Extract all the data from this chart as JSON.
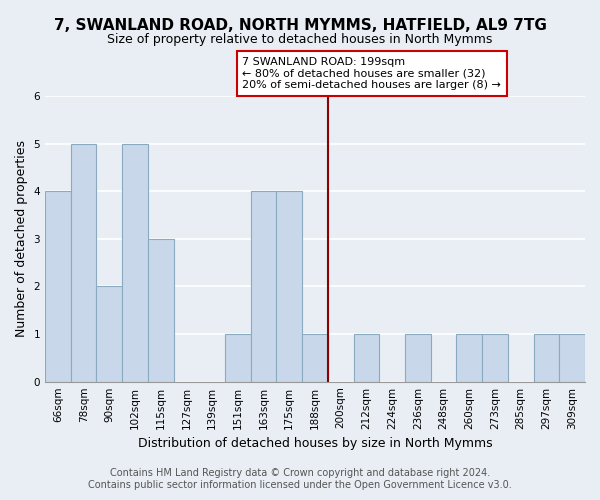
{
  "title": "7, SWANLAND ROAD, NORTH MYMMS, HATFIELD, AL9 7TG",
  "subtitle": "Size of property relative to detached houses in North Mymms",
  "xlabel": "Distribution of detached houses by size in North Mymms",
  "ylabel": "Number of detached properties",
  "bar_labels": [
    "66sqm",
    "78sqm",
    "90sqm",
    "102sqm",
    "115sqm",
    "127sqm",
    "139sqm",
    "151sqm",
    "163sqm",
    "175sqm",
    "188sqm",
    "200sqm",
    "212sqm",
    "224sqm",
    "236sqm",
    "248sqm",
    "260sqm",
    "273sqm",
    "285sqm",
    "297sqm",
    "309sqm"
  ],
  "bar_values": [
    4,
    5,
    2,
    5,
    3,
    0,
    0,
    1,
    4,
    4,
    1,
    0,
    1,
    0,
    1,
    0,
    1,
    1,
    0,
    1,
    1
  ],
  "bar_color": "#c8d8ea",
  "bar_edge_color": "#8aaabf",
  "property_line_x": 10.5,
  "property_line_color": "#8b0000",
  "annotation_title": "7 SWANLAND ROAD: 199sqm",
  "annotation_line1": "← 80% of detached houses are smaller (32)",
  "annotation_line2": "20% of semi-detached houses are larger (8) →",
  "annotation_box_color": "#ffffff",
  "annotation_box_edge_color": "#cc0000",
  "ylim_min": 0,
  "ylim_max": 6,
  "yticks": [
    0,
    1,
    2,
    3,
    4,
    5,
    6
  ],
  "footer_line1": "Contains HM Land Registry data © Crown copyright and database right 2024.",
  "footer_line2": "Contains public sector information licensed under the Open Government Licence v3.0.",
  "background_color": "#e8eef4",
  "grid_color": "#ffffff",
  "title_fontsize": 11,
  "subtitle_fontsize": 9,
  "axis_label_fontsize": 9,
  "tick_fontsize": 7.5,
  "footer_fontsize": 7,
  "ann_fontsize": 8
}
